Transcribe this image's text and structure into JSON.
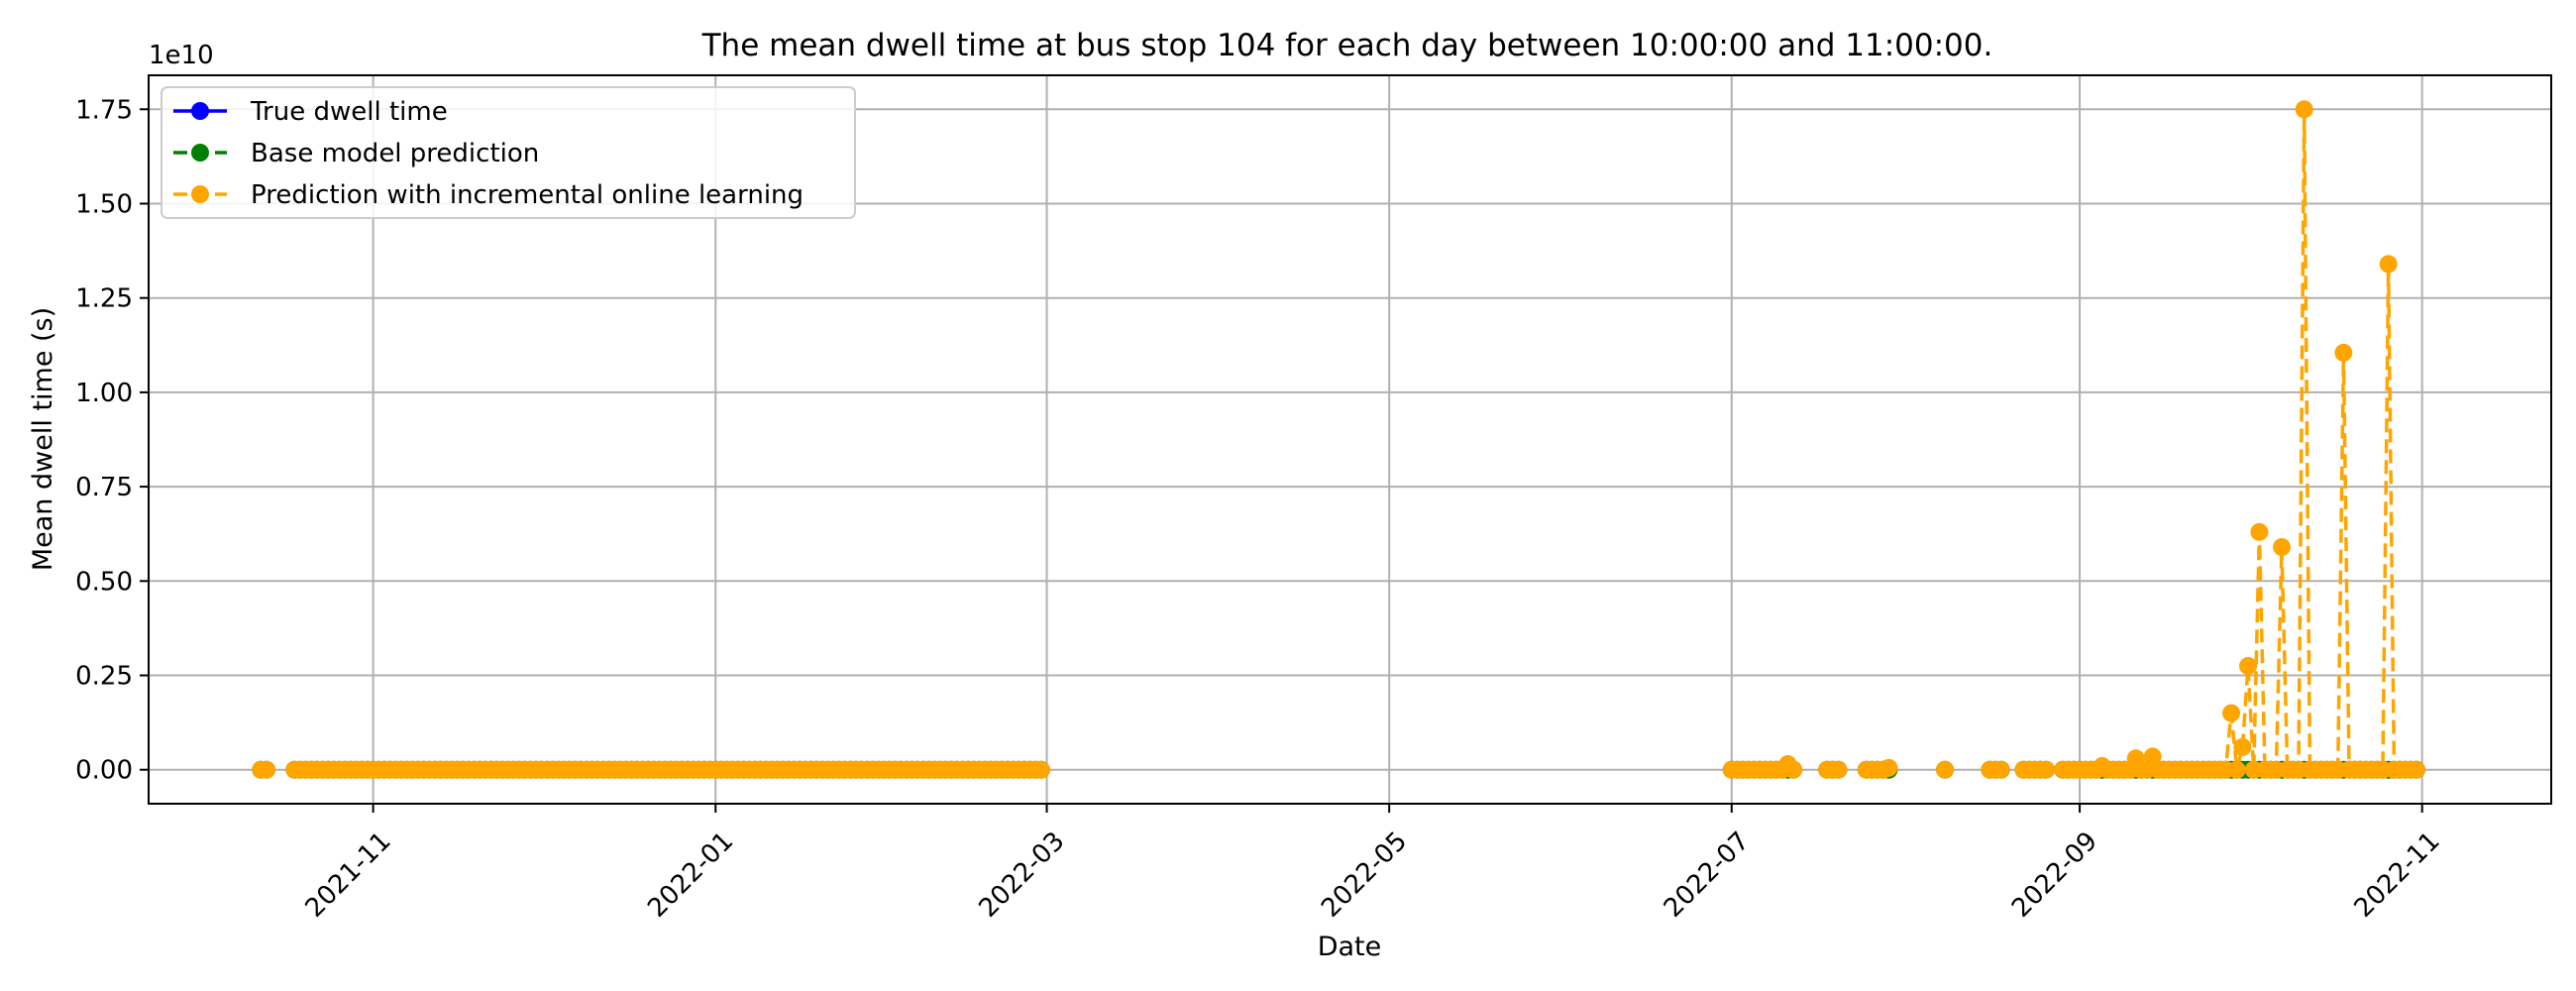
{
  "chart_data": {
    "type": "line",
    "title": "The mean dwell time at bus stop 104 for each day between 10:00:00 and 11:00:00.",
    "xlabel": "Date",
    "ylabel": "Mean dwell time (s)",
    "y_offset_label": "1e10",
    "y_scale_factor": 10000000000,
    "xlim": [
      "2021-09-22",
      "2022-11-24"
    ],
    "ylim": [
      -0.09,
      1.84
    ],
    "x_ticks": [
      "2021-11",
      "2022-01",
      "2022-03",
      "2022-05",
      "2022-07",
      "2022-09",
      "2022-11"
    ],
    "x_tick_dates": [
      "2021-11-01",
      "2022-01-01",
      "2022-03-01",
      "2022-05-01",
      "2022-07-01",
      "2022-09-01",
      "2022-11-01"
    ],
    "y_ticks": [
      "0.00",
      "0.25",
      "0.50",
      "0.75",
      "1.00",
      "1.25",
      "1.50",
      "1.75"
    ],
    "y_tick_values": [
      0,
      0.25,
      0.5,
      0.75,
      1.0,
      1.25,
      1.5,
      1.75
    ],
    "grid": true,
    "legend_position": "top-left",
    "segments": [
      [
        "2021-10-12",
        "2021-10-13"
      ],
      [
        "2021-10-18",
        "2022-02-28"
      ],
      [
        "2022-07-01",
        "2022-07-12"
      ],
      [
        "2022-07-18",
        "2022-07-20"
      ],
      [
        "2022-07-25",
        "2022-07-29"
      ],
      [
        "2022-08-08",
        "2022-08-08"
      ],
      [
        "2022-08-16",
        "2022-08-18"
      ],
      [
        "2022-08-22",
        "2022-08-26"
      ],
      [
        "2022-08-29",
        "2022-10-31"
      ]
    ],
    "series": [
      {
        "name": "True dwell time",
        "color": "#0000ff",
        "line_style": "solid",
        "marker": "circle",
        "points": []
      },
      {
        "name": "Base model prediction",
        "color": "#008000",
        "line_style": "dashed",
        "marker": "circle",
        "points": []
      },
      {
        "name": "Prediction with incremental online learning",
        "color": "#ffa500",
        "line_style": "dashed",
        "marker": "circle",
        "points": [
          [
            "2022-07-11",
            0.015
          ],
          [
            "2022-07-29",
            0.005
          ],
          [
            "2022-09-05",
            0.01
          ],
          [
            "2022-09-11",
            0.03
          ],
          [
            "2022-09-14",
            0.035
          ],
          [
            "2022-09-28",
            0.15
          ],
          [
            "2022-09-30",
            0.06
          ],
          [
            "2022-10-01",
            0.275
          ],
          [
            "2022-10-03",
            0.63
          ],
          [
            "2022-10-07",
            0.59
          ],
          [
            "2022-10-11",
            1.75
          ],
          [
            "2022-10-18",
            1.105
          ],
          [
            "2022-10-26",
            1.34
          ]
        ]
      }
    ]
  }
}
